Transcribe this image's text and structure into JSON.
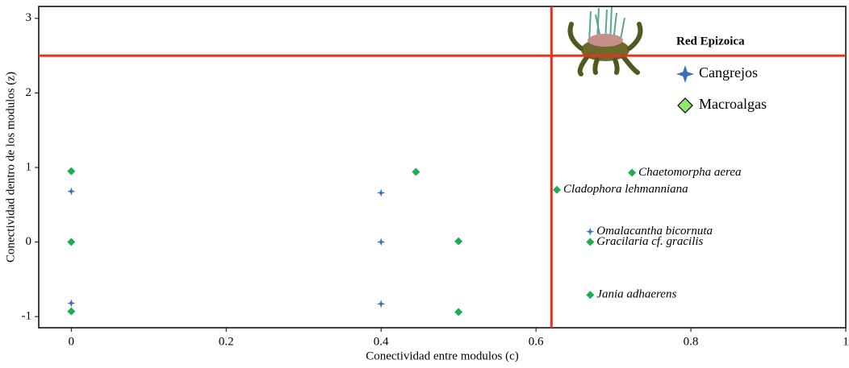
{
  "chart_data": {
    "type": "scatter",
    "xlabel": "Conectividad  entre modulos (c)",
    "ylabel": "Conectividad  dentro de los modulos (z)",
    "xlim": [
      -0.042,
      1
    ],
    "ylim": [
      -1.15,
      3.16
    ],
    "xticks": [
      0,
      0.2,
      0.4,
      0.6,
      0.8,
      1
    ],
    "yticks": [
      -1,
      0,
      1,
      2,
      3
    ],
    "grid": false,
    "legend_title": "Red Epizoica",
    "legend": "upper right",
    "reference_lines": {
      "color": "#e8301c",
      "h": [
        2.5
      ],
      "v": [
        0.62
      ]
    },
    "series": [
      {
        "name": "Cangrejos",
        "color": "#3d6fb5",
        "marker": "star",
        "x": [
          0,
          0,
          0.4,
          0.4,
          0.4,
          0.67
        ],
        "values": [
          0.68,
          -0.82,
          0.66,
          0,
          -0.83,
          0.14
        ],
        "labels": [
          null,
          null,
          null,
          null,
          null,
          "Omalacantha bicornuta"
        ]
      },
      {
        "name": "Macroalgas",
        "color": "#1fad52",
        "marker": "diamond",
        "x": [
          0,
          0,
          0,
          0.445,
          0.5,
          0.5,
          0.627,
          0.724,
          0.67,
          0.67
        ],
        "values": [
          0.95,
          0,
          -0.93,
          0.94,
          0.01,
          -0.94,
          0.7,
          0.93,
          0,
          -0.71
        ],
        "labels": [
          null,
          null,
          null,
          null,
          null,
          null,
          "Cladophora lehmanniana",
          "Chaetomorpha aerea",
          "Gracilaria cf. gracilis",
          "Jania adhaerens"
        ]
      }
    ]
  }
}
